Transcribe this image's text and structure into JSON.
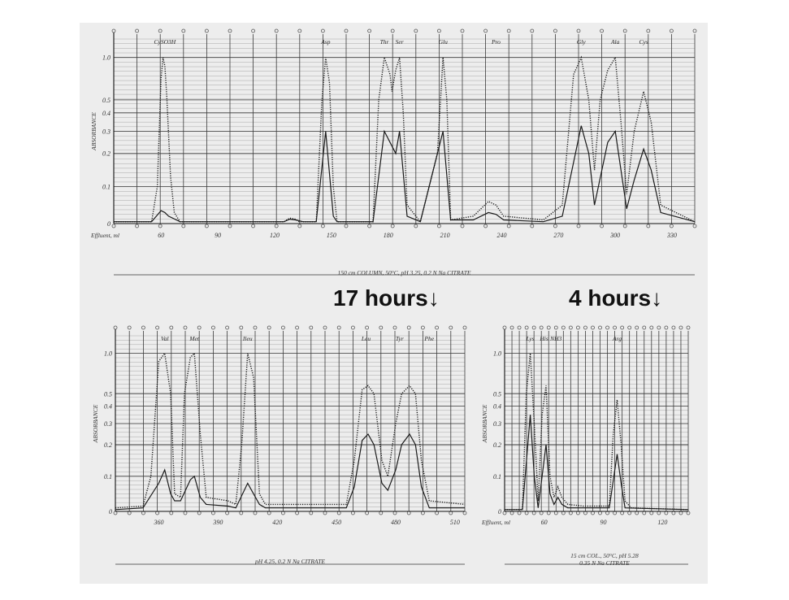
{
  "annotations": {
    "hours_17": "17 hours↓",
    "hours_4": "4 hours↓"
  },
  "chart_data": [
    {
      "type": "line",
      "id": "top",
      "ylabel": "ABSORBANCE",
      "xlabel": "Effluent, ml",
      "footer": "150 cm COLUMN, 50°C, pH 3.25, 0.2 N Na CITRATE",
      "x_ticks": [
        60,
        90,
        120,
        150,
        180,
        210,
        240,
        270,
        300,
        330
      ],
      "xlim": [
        35,
        342
      ],
      "y_ticks": [
        "1.0",
        "0.5",
        "0.4",
        "0.3",
        "0.2",
        "0.1",
        "0"
      ],
      "y_tick_values": [
        1.0,
        0.5,
        0.4,
        0.3,
        0.2,
        0.1,
        0
      ],
      "grid": true,
      "peak_labels": [
        {
          "label": "CySO3H",
          "x": 62
        },
        {
          "label": "Asp",
          "x": 147
        },
        {
          "label": "Thr",
          "x": 178
        },
        {
          "label": "Ser",
          "x": 186
        },
        {
          "label": "Glu",
          "x": 209
        },
        {
          "label": "Pro",
          "x": 237
        },
        {
          "label": "Gly",
          "x": 282
        },
        {
          "label": "Ala",
          "x": 300
        },
        {
          "label": "Cys",
          "x": 315
        }
      ],
      "series": [
        {
          "values": [
            [
              35,
              0.005
            ],
            [
              55,
              0.005
            ],
            [
              58,
              0.1
            ],
            [
              60,
              0.75
            ],
            [
              61,
              1.0
            ],
            [
              62,
              0.9
            ],
            [
              63,
              0.55
            ],
            [
              65,
              0.13
            ],
            [
              67,
              0.03
            ],
            [
              70,
              0.005
            ],
            [
              125,
              0.005
            ],
            [
              128,
              0.015
            ],
            [
              131,
              0.012
            ],
            [
              133,
              0.005
            ],
            [
              142,
              0.005
            ],
            [
              145,
              0.5
            ],
            [
              147,
              1.0
            ],
            [
              149,
              0.7
            ],
            [
              151,
              0.1
            ],
            [
              153,
              0.005
            ],
            [
              172,
              0.005
            ],
            [
              175,
              0.5
            ],
            [
              178,
              1.0
            ],
            [
              181,
              0.8
            ],
            [
              182,
              0.6
            ],
            [
              184,
              0.85
            ],
            [
              186,
              1.0
            ],
            [
              188,
              0.4
            ],
            [
              190,
              0.05
            ],
            [
              197,
              0.005
            ],
            [
              206,
              0.2
            ],
            [
              209,
              1.0
            ],
            [
              211,
              0.5
            ],
            [
              213,
              0.01
            ],
            [
              225,
              0.02
            ],
            [
              233,
              0.06
            ],
            [
              237,
              0.05
            ],
            [
              241,
              0.02
            ],
            [
              262,
              0.01
            ],
            [
              272,
              0.05
            ],
            [
              278,
              0.8
            ],
            [
              282,
              1.0
            ],
            [
              286,
              0.5
            ],
            [
              289,
              0.15
            ],
            [
              292,
              0.5
            ],
            [
              296,
              0.85
            ],
            [
              300,
              1.0
            ],
            [
              303,
              0.35
            ],
            [
              306,
              0.08
            ],
            [
              310,
              0.3
            ],
            [
              315,
              0.6
            ],
            [
              319,
              0.35
            ],
            [
              324,
              0.05
            ],
            [
              342,
              0.005
            ]
          ]
        },
        {
          "values": [
            [
              35,
              0.005
            ],
            [
              55,
              0.005
            ],
            [
              60,
              0.035
            ],
            [
              62,
              0.03
            ],
            [
              64,
              0.02
            ],
            [
              70,
              0.005
            ],
            [
              125,
              0.005
            ],
            [
              128,
              0.012
            ],
            [
              131,
              0.01
            ],
            [
              135,
              0.005
            ],
            [
              142,
              0.005
            ],
            [
              147,
              0.3
            ],
            [
              151,
              0.02
            ],
            [
              153,
              0.005
            ],
            [
              172,
              0.005
            ],
            [
              178,
              0.3
            ],
            [
              184,
              0.2
            ],
            [
              186,
              0.3
            ],
            [
              190,
              0.02
            ],
            [
              197,
              0.005
            ],
            [
              209,
              0.3
            ],
            [
              213,
              0.01
            ],
            [
              225,
              0.01
            ],
            [
              233,
              0.03
            ],
            [
              237,
              0.025
            ],
            [
              241,
              0.01
            ],
            [
              262,
              0.005
            ],
            [
              272,
              0.02
            ],
            [
              282,
              0.33
            ],
            [
              286,
              0.2
            ],
            [
              289,
              0.05
            ],
            [
              296,
              0.25
            ],
            [
              300,
              0.3
            ],
            [
              303,
              0.15
            ],
            [
              306,
              0.04
            ],
            [
              310,
              0.12
            ],
            [
              315,
              0.22
            ],
            [
              319,
              0.15
            ],
            [
              324,
              0.03
            ],
            [
              342,
              0.005
            ]
          ]
        }
      ]
    },
    {
      "type": "line",
      "id": "bottom-left",
      "ylabel": "ABSORBANCE",
      "footer": "pH 4.25, 0.2 N Na CITRATE",
      "x_ticks": [
        360,
        390,
        420,
        450,
        480,
        510
      ],
      "xlim": [
        338,
        515
      ],
      "y_ticks": [
        "1.0",
        "0.5",
        "0.4",
        "0.3",
        "0.2",
        "0.1",
        "0"
      ],
      "y_tick_values": [
        1.0,
        0.5,
        0.4,
        0.3,
        0.2,
        0.1,
        0
      ],
      "grid": true,
      "peak_labels": [
        {
          "label": "Val",
          "x": 363
        },
        {
          "label": "Met",
          "x": 378
        },
        {
          "label": "Ileu",
          "x": 405
        },
        {
          "label": "Leu",
          "x": 465
        },
        {
          "label": "Tyr",
          "x": 482
        },
        {
          "label": "Phe",
          "x": 497
        }
      ],
      "series": [
        {
          "values": [
            [
              338,
              0.01
            ],
            [
              352,
              0.015
            ],
            [
              356,
              0.1
            ],
            [
              360,
              0.9
            ],
            [
              363,
              1.0
            ],
            [
              366,
              0.5
            ],
            [
              368,
              0.05
            ],
            [
              371,
              0.04
            ],
            [
              373,
              0.5
            ],
            [
              376,
              0.95
            ],
            [
              378,
              1.0
            ],
            [
              381,
              0.25
            ],
            [
              384,
              0.04
            ],
            [
              395,
              0.03
            ],
            [
              399,
              0.02
            ],
            [
              402,
              0.2
            ],
            [
              405,
              1.0
            ],
            [
              408,
              0.7
            ],
            [
              411,
              0.05
            ],
            [
              414,
              0.02
            ],
            [
              455,
              0.02
            ],
            [
              459,
              0.15
            ],
            [
              463,
              0.55
            ],
            [
              466,
              0.6
            ],
            [
              469,
              0.5
            ],
            [
              473,
              0.15
            ],
            [
              476,
              0.1
            ],
            [
              480,
              0.3
            ],
            [
              483,
              0.5
            ],
            [
              487,
              0.6
            ],
            [
              490,
              0.5
            ],
            [
              493,
              0.15
            ],
            [
              497,
              0.03
            ],
            [
              515,
              0.02
            ]
          ]
        },
        {
          "values": [
            [
              338,
              0.005
            ],
            [
              352,
              0.01
            ],
            [
              360,
              0.08
            ],
            [
              363,
              0.12
            ],
            [
              366,
              0.05
            ],
            [
              368,
              0.03
            ],
            [
              371,
              0.03
            ],
            [
              376,
              0.09
            ],
            [
              378,
              0.1
            ],
            [
              381,
              0.04
            ],
            [
              384,
              0.02
            ],
            [
              395,
              0.015
            ],
            [
              399,
              0.01
            ],
            [
              405,
              0.08
            ],
            [
              411,
              0.02
            ],
            [
              414,
              0.01
            ],
            [
              455,
              0.01
            ],
            [
              459,
              0.07
            ],
            [
              463,
              0.22
            ],
            [
              466,
              0.25
            ],
            [
              469,
              0.2
            ],
            [
              473,
              0.08
            ],
            [
              476,
              0.06
            ],
            [
              480,
              0.12
            ],
            [
              483,
              0.2
            ],
            [
              487,
              0.25
            ],
            [
              490,
              0.2
            ],
            [
              493,
              0.07
            ],
            [
              497,
              0.01
            ],
            [
              515,
              0.01
            ]
          ]
        }
      ]
    },
    {
      "type": "line",
      "id": "bottom-right",
      "ylabel": "ABSORBANCE",
      "xlabel": "Effluent, ml",
      "footer_1": "15 cm COL., 50°C, pH 5.28",
      "footer_2": "0.35 N Na CITRATE",
      "x_ticks": [
        60,
        90,
        120
      ],
      "xlim": [
        40,
        133
      ],
      "y_ticks": [
        "1.0",
        "0.5",
        "0.4",
        "0.3",
        "0.2",
        "0.1",
        "0"
      ],
      "y_tick_values": [
        1.0,
        0.5,
        0.4,
        0.3,
        0.2,
        0.1,
        0
      ],
      "grid": true,
      "peak_labels": [
        {
          "label": "Lys",
          "x": 53
        },
        {
          "label": "His",
          "x": 60
        },
        {
          "label": "NH3",
          "x": 66
        },
        {
          "label": "Arg",
          "x": 97
        }
      ],
      "series": [
        {
          "values": [
            [
              40,
              0.005
            ],
            [
              49,
              0.005
            ],
            [
              51,
              0.5
            ],
            [
              53,
              1.0
            ],
            [
              55,
              0.3
            ],
            [
              57,
              0.03
            ],
            [
              59,
              0.35
            ],
            [
              61,
              0.6
            ],
            [
              63,
              0.1
            ],
            [
              65,
              0.04
            ],
            [
              67,
              0.07
            ],
            [
              69,
              0.04
            ],
            [
              72,
              0.02
            ],
            [
              80,
              0.015
            ],
            [
              93,
              0.015
            ],
            [
              95,
              0.25
            ],
            [
              97,
              0.45
            ],
            [
              99,
              0.2
            ],
            [
              101,
              0.03
            ],
            [
              104,
              0.01
            ],
            [
              133,
              0.005
            ]
          ]
        },
        {
          "values": [
            [
              40,
              0.005
            ],
            [
              49,
              0.005
            ],
            [
              53,
              0.35
            ],
            [
              55,
              0.1
            ],
            [
              57,
              0.01
            ],
            [
              61,
              0.2
            ],
            [
              63,
              0.05
            ],
            [
              65,
              0.02
            ],
            [
              67,
              0.04
            ],
            [
              69,
              0.02
            ],
            [
              72,
              0.01
            ],
            [
              93,
              0.01
            ],
            [
              97,
              0.17
            ],
            [
              99,
              0.08
            ],
            [
              101,
              0.01
            ],
            [
              133,
              0.005
            ]
          ]
        }
      ]
    }
  ]
}
